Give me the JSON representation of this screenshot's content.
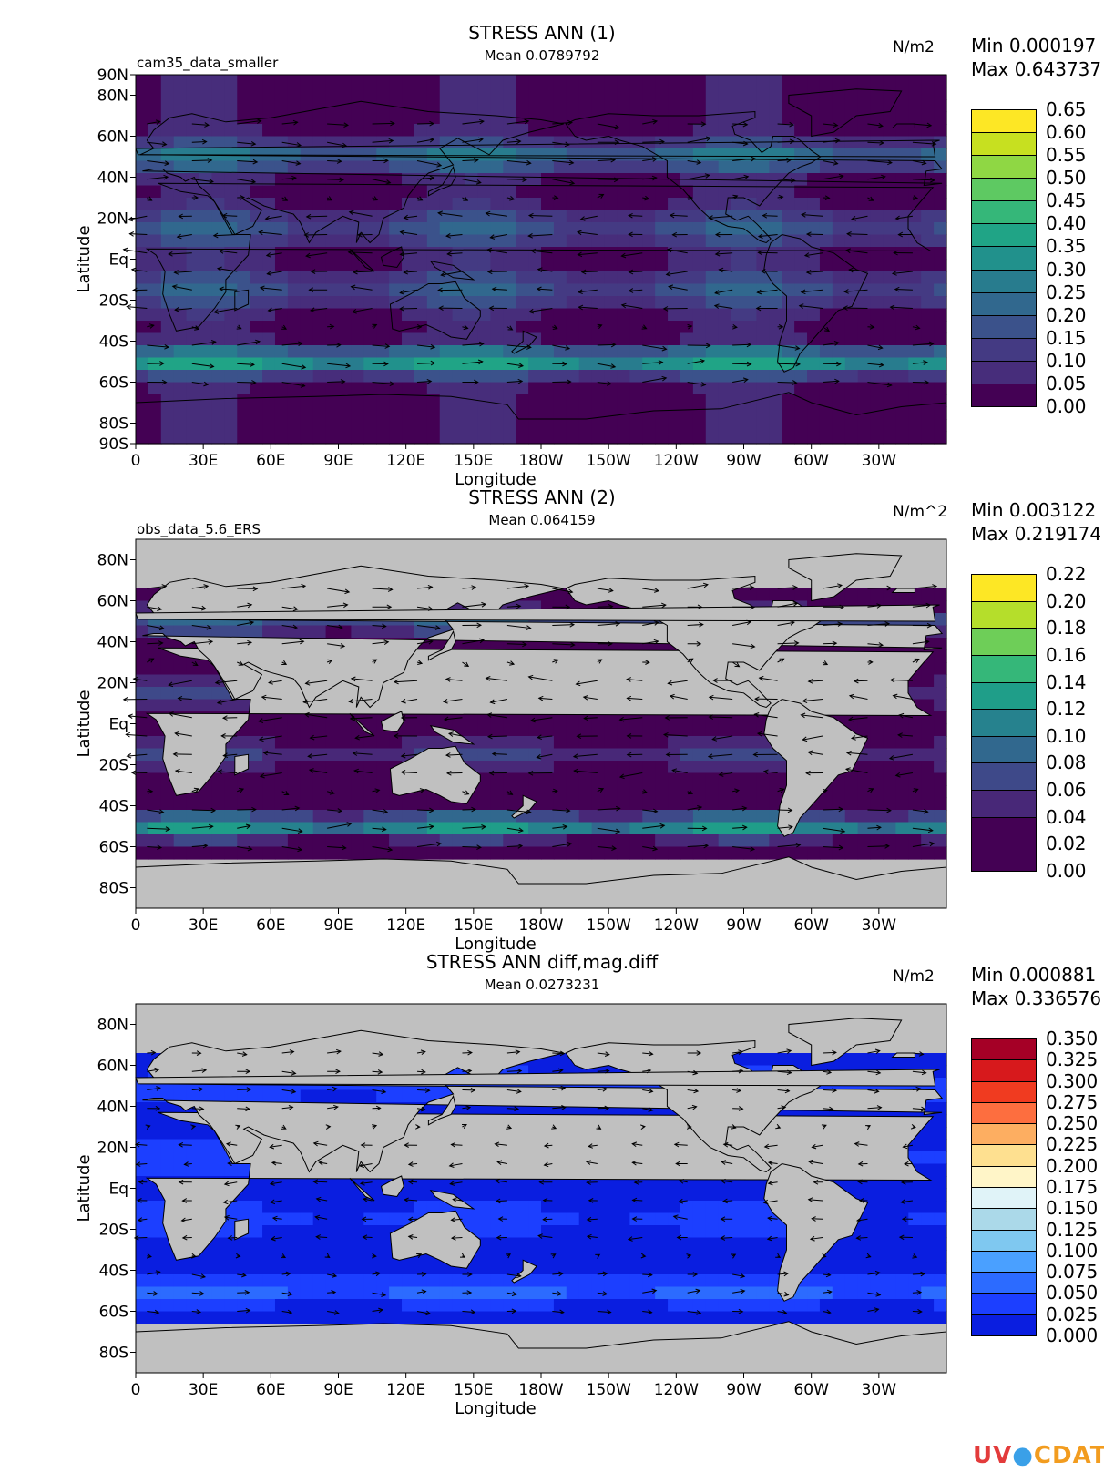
{
  "logo": {
    "text_a": "UV",
    "text_b": "CDAT"
  },
  "colors": {
    "land": "#c0c0c0",
    "coast": "#000000",
    "arrow": "#000000"
  },
  "x_ticks": [
    "0",
    "30E",
    "60E",
    "90E",
    "120E",
    "150E",
    "180W",
    "150W",
    "120W",
    "90W",
    "60W",
    "30W"
  ],
  "x_label": "Longitude",
  "y_label": "Latitude",
  "panels": [
    {
      "title": "STRESS ANN (1)",
      "mean": "Mean 0.0789792",
      "dataset": "cam35_data_smaller",
      "units": "N/m2",
      "min": "Min 0.000197",
      "max": "Max 0.643737",
      "y_ticks": [
        "90N",
        "80N",
        "60N",
        "40N",
        "20N",
        "Eq",
        "20S",
        "40S",
        "60S",
        "80S",
        "90S"
      ],
      "y_range": [
        -90,
        90
      ],
      "levels": [
        "0.65",
        "0.60",
        "0.55",
        "0.50",
        "0.45",
        "0.40",
        "0.35",
        "0.30",
        "0.25",
        "0.20",
        "0.15",
        "0.10",
        "0.05",
        "0.00"
      ],
      "colors": [
        "#fde725",
        "#c7e020",
        "#8fd744",
        "#5ec962",
        "#35b779",
        "#20a486",
        "#21918c",
        "#287c8e",
        "#31688e",
        "#3b528b",
        "#443a83",
        "#472d7b",
        "#440154"
      ],
      "masked_ocean": false
    },
    {
      "title": "STRESS ANN (2)",
      "mean": "Mean 0.064159",
      "dataset": "obs_data_5.6_ERS",
      "units": "N/m^2",
      "min": "Min 0.003122",
      "max": "Max 0.219174",
      "y_ticks": [
        "80N",
        "60N",
        "40N",
        "20N",
        "Eq",
        "20S",
        "40S",
        "60S",
        "80S"
      ],
      "y_range": [
        -90,
        90
      ],
      "levels": [
        "0.22",
        "0.20",
        "0.18",
        "0.16",
        "0.14",
        "0.12",
        "0.10",
        "0.08",
        "0.06",
        "0.04",
        "0.02",
        "0.00"
      ],
      "colors": [
        "#fde725",
        "#b5de2b",
        "#6ece58",
        "#35b779",
        "#1f9e89",
        "#26828e",
        "#31688e",
        "#3e4989",
        "#482878",
        "#440154",
        "#440154"
      ],
      "masked_ocean": true
    },
    {
      "title": "STRESS ANN diff,mag.diff",
      "mean": "Mean 0.0273231",
      "dataset": "",
      "units": "N/m2",
      "min": "Min 0.000881",
      "max": "Max 0.336576",
      "y_ticks": [
        "80N",
        "60N",
        "40N",
        "20N",
        "Eq",
        "20S",
        "40S",
        "60S",
        "80S"
      ],
      "y_range": [
        -90,
        90
      ],
      "levels": [
        "0.350",
        "0.325",
        "0.300",
        "0.275",
        "0.250",
        "0.225",
        "0.200",
        "0.175",
        "0.150",
        "0.125",
        "0.100",
        "0.075",
        "0.050",
        "0.025",
        "0.000"
      ],
      "colors": [
        "#a50026",
        "#d7191c",
        "#f03b20",
        "#fd6e3f",
        "#fdae61",
        "#fee090",
        "#fff5c8",
        "#e0f3f8",
        "#abd9e9",
        "#7fc8f0",
        "#4aa0ff",
        "#2c6bff",
        "#1c3fff",
        "#0a1ee0"
      ],
      "masked_ocean": true
    }
  ]
}
